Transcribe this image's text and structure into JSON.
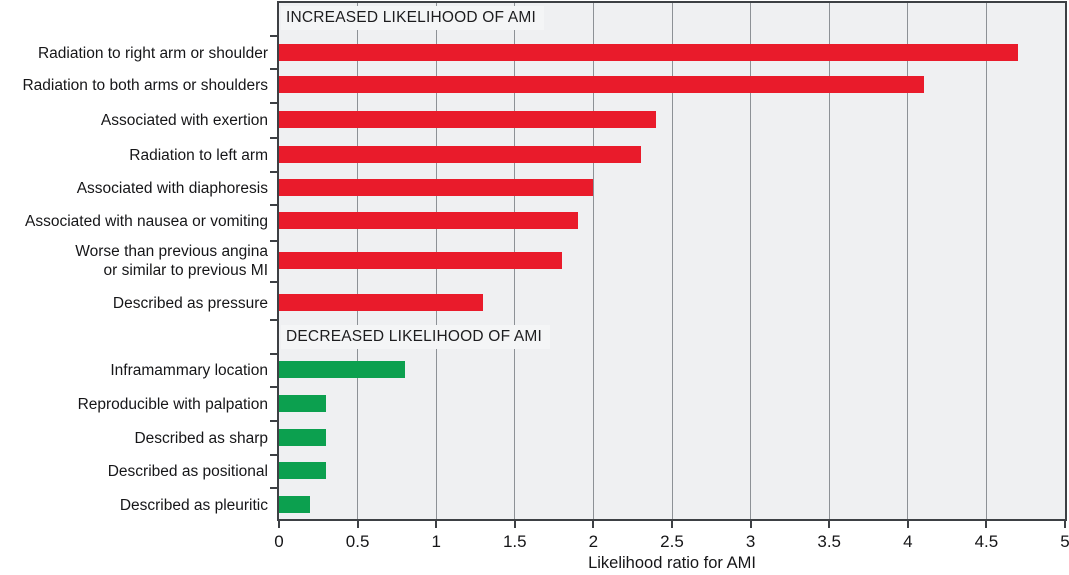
{
  "chart_data": {
    "type": "bar",
    "orientation": "horizontal",
    "title": "",
    "xlabel": "Likelihood ratio for AMI",
    "ylabel": "",
    "xlim": [
      0,
      5
    ],
    "x_tick_labels": [
      "0",
      "0.5",
      "1",
      "1.5",
      "2",
      "2.5",
      "3",
      "3.5",
      "4",
      "4.5",
      "5"
    ],
    "grid": "vertical",
    "legend": "none",
    "sections": [
      {
        "header": "INCREASED LIKELIHOOD OF AMI",
        "bar_color": "#e91b2b",
        "items": [
          {
            "label": "Radiation to right arm or shoulder",
            "value": 4.7
          },
          {
            "label": "Radiation to both arms or shoulders",
            "value": 4.1
          },
          {
            "label": "Associated with exertion",
            "value": 2.4
          },
          {
            "label": "Radiation to left arm",
            "value": 2.3
          },
          {
            "label": "Associated with diaphoresis",
            "value": 2.0
          },
          {
            "label": "Associated with nausea or vomiting",
            "value": 1.9
          },
          {
            "label": "Worse than previous angina or similar to previous MI",
            "label_lines": [
              "Worse than previous angina",
              "or similar to previous MI"
            ],
            "value": 1.8
          },
          {
            "label": "Described as pressure",
            "value": 1.3
          }
        ]
      },
      {
        "header": "DECREASED LIKELIHOOD OF AMI",
        "bar_color": "#0ca04f",
        "items": [
          {
            "label": "Inframammary location",
            "value": 0.8
          },
          {
            "label": "Reproducible with palpation",
            "value": 0.3
          },
          {
            "label": "Described as sharp",
            "value": 0.3
          },
          {
            "label": "Described as positional",
            "value": 0.3
          },
          {
            "label": "Described as pleuritic",
            "value": 0.2
          }
        ]
      }
    ],
    "colors": {
      "increased_bar": "#e91b2b",
      "decreased_bar": "#0ca04f",
      "plot_background": "#eff0f2",
      "gridline": "#8d9196",
      "frame": "#3d4044",
      "text": "#161618",
      "header_box_background": "#f4f5f6"
    }
  }
}
